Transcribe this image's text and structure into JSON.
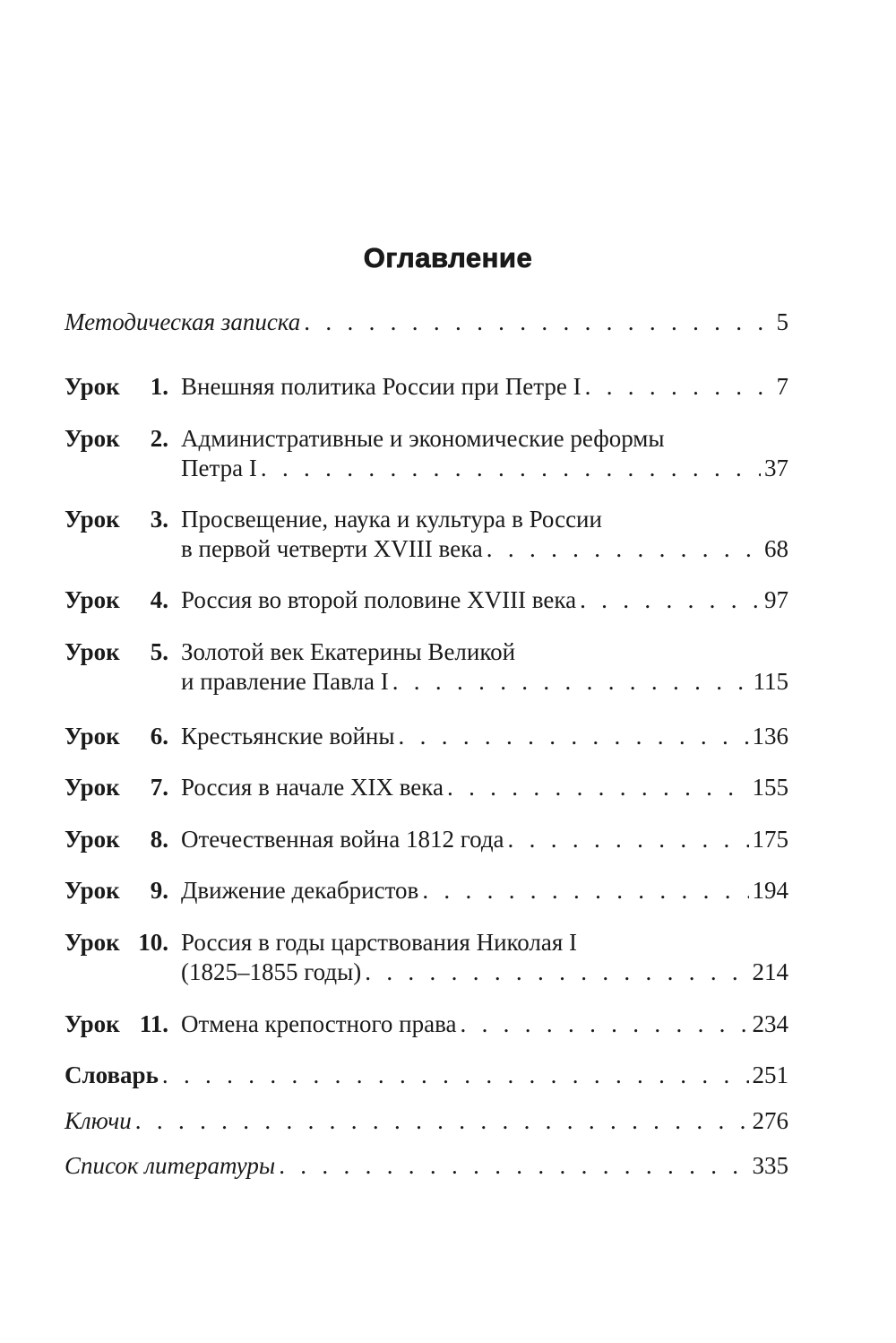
{
  "title": "Оглавление",
  "lesson_word": "Урок",
  "intro": {
    "text": "Методическая записка",
    "page": "5"
  },
  "lessons": [
    {
      "num": "1.",
      "lines": [
        "Внешняя политика России при Петре I"
      ],
      "page": "7"
    },
    {
      "num": "2.",
      "lines": [
        "Административные и экономические реформы",
        "Петра I"
      ],
      "page": "37"
    },
    {
      "num": "3.",
      "lines": [
        "Просвещение, наука и культура в России",
        "в первой четверти XVIII века"
      ],
      "page": "68"
    },
    {
      "num": "4.",
      "lines": [
        "Россия во второй половине XVIII века"
      ],
      "page": "97"
    },
    {
      "num": "5.",
      "lines": [
        "Золотой век Екатерины Великой",
        "и правление Павла I"
      ],
      "page": "115"
    },
    {
      "num": "6.",
      "lines": [
        "Крестьянские войны"
      ],
      "page": "136"
    },
    {
      "num": "7.",
      "lines": [
        "Россия в начале XIX века"
      ],
      "page": "155"
    },
    {
      "num": "8.",
      "lines": [
        "Отечественная война 1812 года"
      ],
      "page": "175"
    },
    {
      "num": "9.",
      "lines": [
        "Движение декабристов"
      ],
      "page": "194"
    },
    {
      "num": "10.",
      "lines": [
        "Россия в годы царствования Николая I",
        "(1825–1855 годы)"
      ],
      "page": "214"
    },
    {
      "num": "11.",
      "lines": [
        "Отмена крепостного права"
      ],
      "page": "234"
    }
  ],
  "appendix": [
    {
      "text": "Словарь",
      "page": "251",
      "style": "bold"
    },
    {
      "text": "Ключи",
      "page": "276",
      "style": "italic"
    },
    {
      "text": "Список литературы",
      "page": "335",
      "style": "italic"
    }
  ]
}
